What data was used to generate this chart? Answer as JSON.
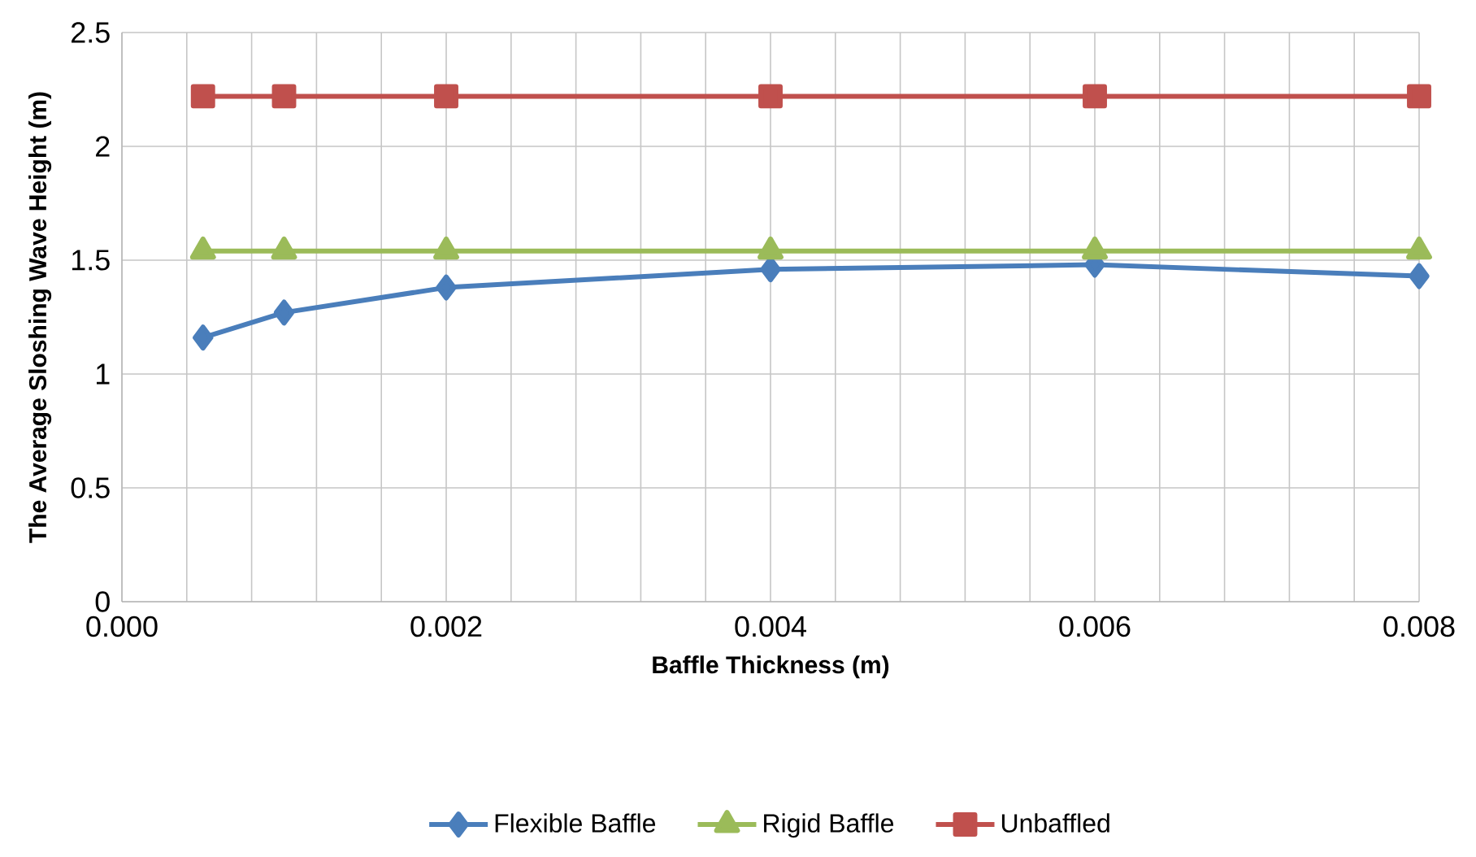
{
  "chart_data": {
    "type": "line",
    "xlabel": "Baffle Thickness (m)",
    "ylabel": "The Average Sloshing Wave Height (m)",
    "x": [
      0.0005,
      0.001,
      0.002,
      0.004,
      0.006,
      0.008
    ],
    "series": [
      {
        "name": "Flexible Baffle",
        "color": "#4a7ebb",
        "marker": "diamond",
        "values": [
          1.16,
          1.27,
          1.38,
          1.46,
          1.48,
          1.43
        ]
      },
      {
        "name": "Rigid Baffle",
        "color": "#9bbb59",
        "marker": "triangle",
        "values": [
          1.54,
          1.54,
          1.54,
          1.54,
          1.54,
          1.54
        ]
      },
      {
        "name": "Unbaffled",
        "color": "#c0504d",
        "marker": "square",
        "values": [
          2.22,
          2.22,
          2.22,
          2.22,
          2.22,
          2.22
        ]
      }
    ],
    "xlim": [
      0,
      0.008
    ],
    "ylim": [
      0,
      2.5
    ],
    "xticks": [
      {
        "value": 0,
        "label": "0.000"
      },
      {
        "value": 0.002,
        "label": "0.002"
      },
      {
        "value": 0.004,
        "label": "0.004"
      },
      {
        "value": 0.006,
        "label": "0.006"
      },
      {
        "value": 0.008,
        "label": "0.008"
      }
    ],
    "yticks": [
      0,
      0.5,
      1,
      1.5,
      2,
      2.5
    ],
    "grid": true,
    "legend": "bottom",
    "line_style": "solid"
  }
}
